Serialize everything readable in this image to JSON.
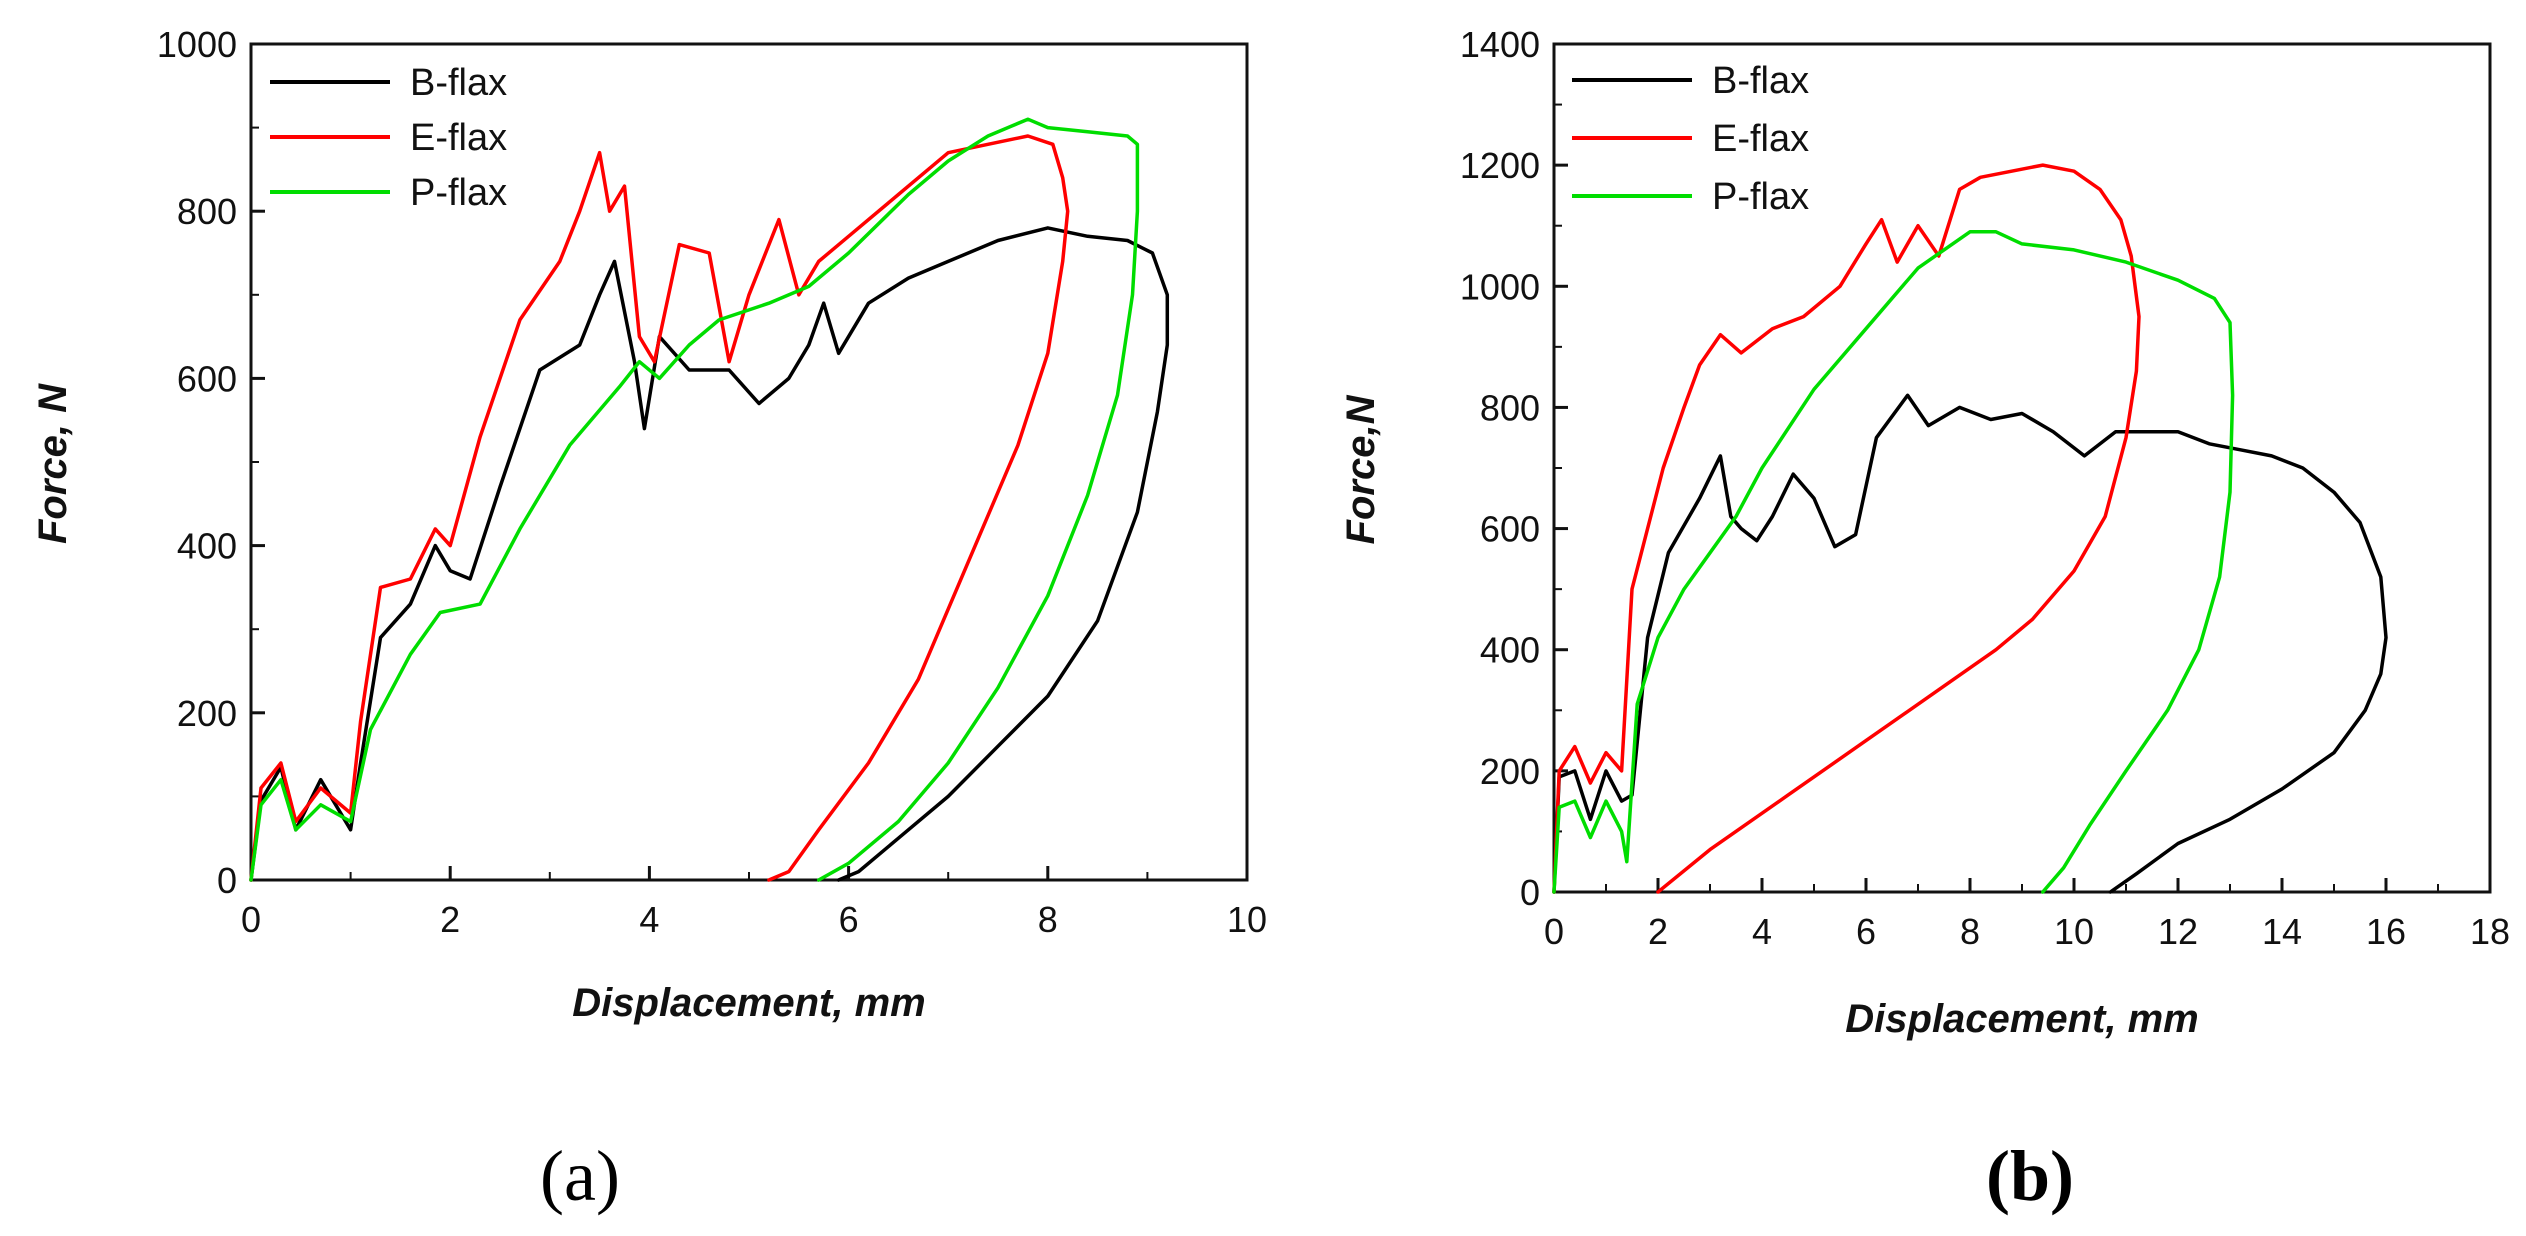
{
  "chart_data": [
    {
      "type": "line",
      "panel_label": "(a)",
      "xlabel": "Displacement, mm",
      "ylabel": "Force, N",
      "xlim": [
        0,
        10
      ],
      "ylim": [
        0,
        1000
      ],
      "xticks": [
        "0",
        "2",
        "4",
        "6",
        "8",
        "10"
      ],
      "yticks": [
        "0",
        "200",
        "400",
        "600",
        "800",
        "1000"
      ],
      "legend_position": "top-left",
      "series": [
        {
          "name": "B-flax",
          "color": "#000000",
          "x": [
            0,
            0.1,
            0.3,
            0.45,
            0.7,
            1.0,
            1.1,
            1.3,
            1.6,
            1.85,
            2.0,
            2.2,
            2.5,
            2.9,
            3.3,
            3.5,
            3.65,
            3.85,
            3.95,
            4.1,
            4.4,
            4.8,
            5.1,
            5.4,
            5.6,
            5.75,
            5.9,
            6.2,
            6.6,
            7.0,
            7.5,
            8.0,
            8.4,
            8.8,
            9.05,
            9.2,
            9.2,
            9.1,
            8.9,
            8.5,
            8.0,
            7.5,
            7.0,
            6.5,
            6.1,
            5.9
          ],
          "y": [
            0,
            95,
            135,
            60,
            120,
            60,
            140,
            290,
            330,
            400,
            370,
            360,
            470,
            610,
            640,
            700,
            740,
            620,
            540,
            650,
            610,
            610,
            570,
            600,
            640,
            690,
            630,
            690,
            720,
            740,
            765,
            780,
            770,
            765,
            750,
            700,
            640,
            560,
            440,
            310,
            220,
            160,
            100,
            50,
            10,
            0
          ]
        },
        {
          "name": "E-flax",
          "color": "#ff0000",
          "x": [
            0,
            0.1,
            0.3,
            0.45,
            0.7,
            1.0,
            1.1,
            1.3,
            1.6,
            1.85,
            2.0,
            2.3,
            2.7,
            3.1,
            3.3,
            3.5,
            3.6,
            3.75,
            3.9,
            4.05,
            4.3,
            4.6,
            4.8,
            5.0,
            5.3,
            5.5,
            5.7,
            6.0,
            6.5,
            7.0,
            7.4,
            7.8,
            8.05,
            8.15,
            8.2,
            8.15,
            8.0,
            7.7,
            7.2,
            6.7,
            6.2,
            5.7,
            5.4,
            5.2
          ],
          "y": [
            0,
            110,
            140,
            70,
            110,
            80,
            190,
            350,
            360,
            420,
            400,
            530,
            670,
            740,
            800,
            870,
            800,
            830,
            650,
            620,
            760,
            750,
            620,
            700,
            790,
            700,
            740,
            770,
            820,
            870,
            880,
            890,
            880,
            840,
            800,
            740,
            630,
            520,
            380,
            240,
            140,
            60,
            10,
            0
          ]
        },
        {
          "name": "P-flax",
          "color": "#00dd00",
          "x": [
            0,
            0.1,
            0.3,
            0.45,
            0.7,
            1.0,
            1.2,
            1.6,
            1.9,
            2.3,
            2.7,
            3.2,
            3.7,
            3.9,
            4.1,
            4.4,
            4.7,
            5.2,
            5.6,
            6.0,
            6.6,
            7.0,
            7.4,
            7.8,
            8.0,
            8.4,
            8.8,
            8.9,
            8.9,
            8.85,
            8.7,
            8.4,
            8.0,
            7.5,
            7.0,
            6.5,
            6.0,
            5.7
          ],
          "y": [
            0,
            90,
            120,
            60,
            90,
            70,
            180,
            270,
            320,
            330,
            420,
            520,
            590,
            620,
            600,
            640,
            670,
            690,
            710,
            750,
            820,
            860,
            890,
            910,
            900,
            895,
            890,
            880,
            800,
            700,
            580,
            460,
            340,
            230,
            140,
            70,
            20,
            0
          ]
        }
      ]
    },
    {
      "type": "line",
      "panel_label": "(b)",
      "xlabel": "Displacement, mm",
      "ylabel": "Force,N",
      "xlim": [
        0,
        18
      ],
      "ylim": [
        0,
        1400
      ],
      "xticks": [
        "0",
        "2",
        "4",
        "6",
        "8",
        "10",
        "12",
        "14",
        "16",
        "18"
      ],
      "yticks": [
        "0",
        "200",
        "400",
        "600",
        "800",
        "1000",
        "1200",
        "1400"
      ],
      "legend_position": "top-left",
      "series": [
        {
          "name": "B-flax",
          "color": "#000000",
          "x": [
            0,
            0.1,
            0.4,
            0.7,
            1.0,
            1.3,
            1.5,
            1.8,
            2.2,
            2.8,
            3.2,
            3.4,
            3.6,
            3.9,
            4.2,
            4.6,
            5.0,
            5.4,
            5.8,
            6.2,
            6.8,
            7.2,
            7.8,
            8.4,
            9.0,
            9.6,
            10.2,
            10.8,
            11.4,
            12.0,
            12.6,
            13.2,
            13.8,
            14.4,
            15.0,
            15.5,
            15.9,
            16.0,
            15.9,
            15.6,
            15.0,
            14.0,
            13.0,
            12.0,
            11.2,
            10.7
          ],
          "y": [
            0,
            190,
            200,
            120,
            200,
            150,
            160,
            420,
            560,
            650,
            720,
            620,
            600,
            580,
            620,
            690,
            650,
            570,
            590,
            750,
            820,
            770,
            800,
            780,
            790,
            760,
            720,
            760,
            760,
            760,
            740,
            730,
            720,
            700,
            660,
            610,
            520,
            420,
            360,
            300,
            230,
            170,
            120,
            80,
            30,
            0
          ]
        },
        {
          "name": "E-flax",
          "color": "#ff0000",
          "x": [
            0,
            0.1,
            0.4,
            0.7,
            1.0,
            1.3,
            1.5,
            1.8,
            2.1,
            2.5,
            2.8,
            3.2,
            3.6,
            4.2,
            4.8,
            5.5,
            6.0,
            6.3,
            6.6,
            7.0,
            7.4,
            7.8,
            8.2,
            8.8,
            9.4,
            10.0,
            10.5,
            10.9,
            11.1,
            11.25,
            11.2,
            11.0,
            10.6,
            10.0,
            9.2,
            8.5,
            7.5,
            6.0,
            4.5,
            3.0,
            2.0
          ],
          "y": [
            0,
            200,
            240,
            180,
            230,
            200,
            500,
            600,
            700,
            800,
            870,
            920,
            890,
            930,
            950,
            1000,
            1070,
            1110,
            1040,
            1100,
            1050,
            1160,
            1180,
            1190,
            1200,
            1190,
            1160,
            1110,
            1050,
            950,
            860,
            750,
            620,
            530,
            450,
            400,
            340,
            250,
            160,
            70,
            0
          ]
        },
        {
          "name": "P-flax",
          "color": "#00dd00",
          "x": [
            0,
            0.1,
            0.4,
            0.7,
            1.0,
            1.3,
            1.4,
            1.6,
            2.0,
            2.5,
            3.0,
            3.5,
            4.0,
            5.0,
            6.0,
            7.0,
            7.5,
            8.0,
            8.5,
            9.0,
            10.0,
            11.0,
            12.0,
            12.7,
            13.0,
            13.05,
            13.0,
            12.8,
            12.4,
            11.8,
            11.0,
            10.3,
            9.8,
            9.4
          ],
          "y": [
            0,
            140,
            150,
            90,
            150,
            100,
            50,
            310,
            420,
            500,
            560,
            620,
            700,
            830,
            930,
            1030,
            1060,
            1090,
            1090,
            1070,
            1060,
            1040,
            1010,
            980,
            940,
            820,
            660,
            520,
            400,
            300,
            200,
            110,
            40,
            0
          ]
        }
      ]
    }
  ]
}
